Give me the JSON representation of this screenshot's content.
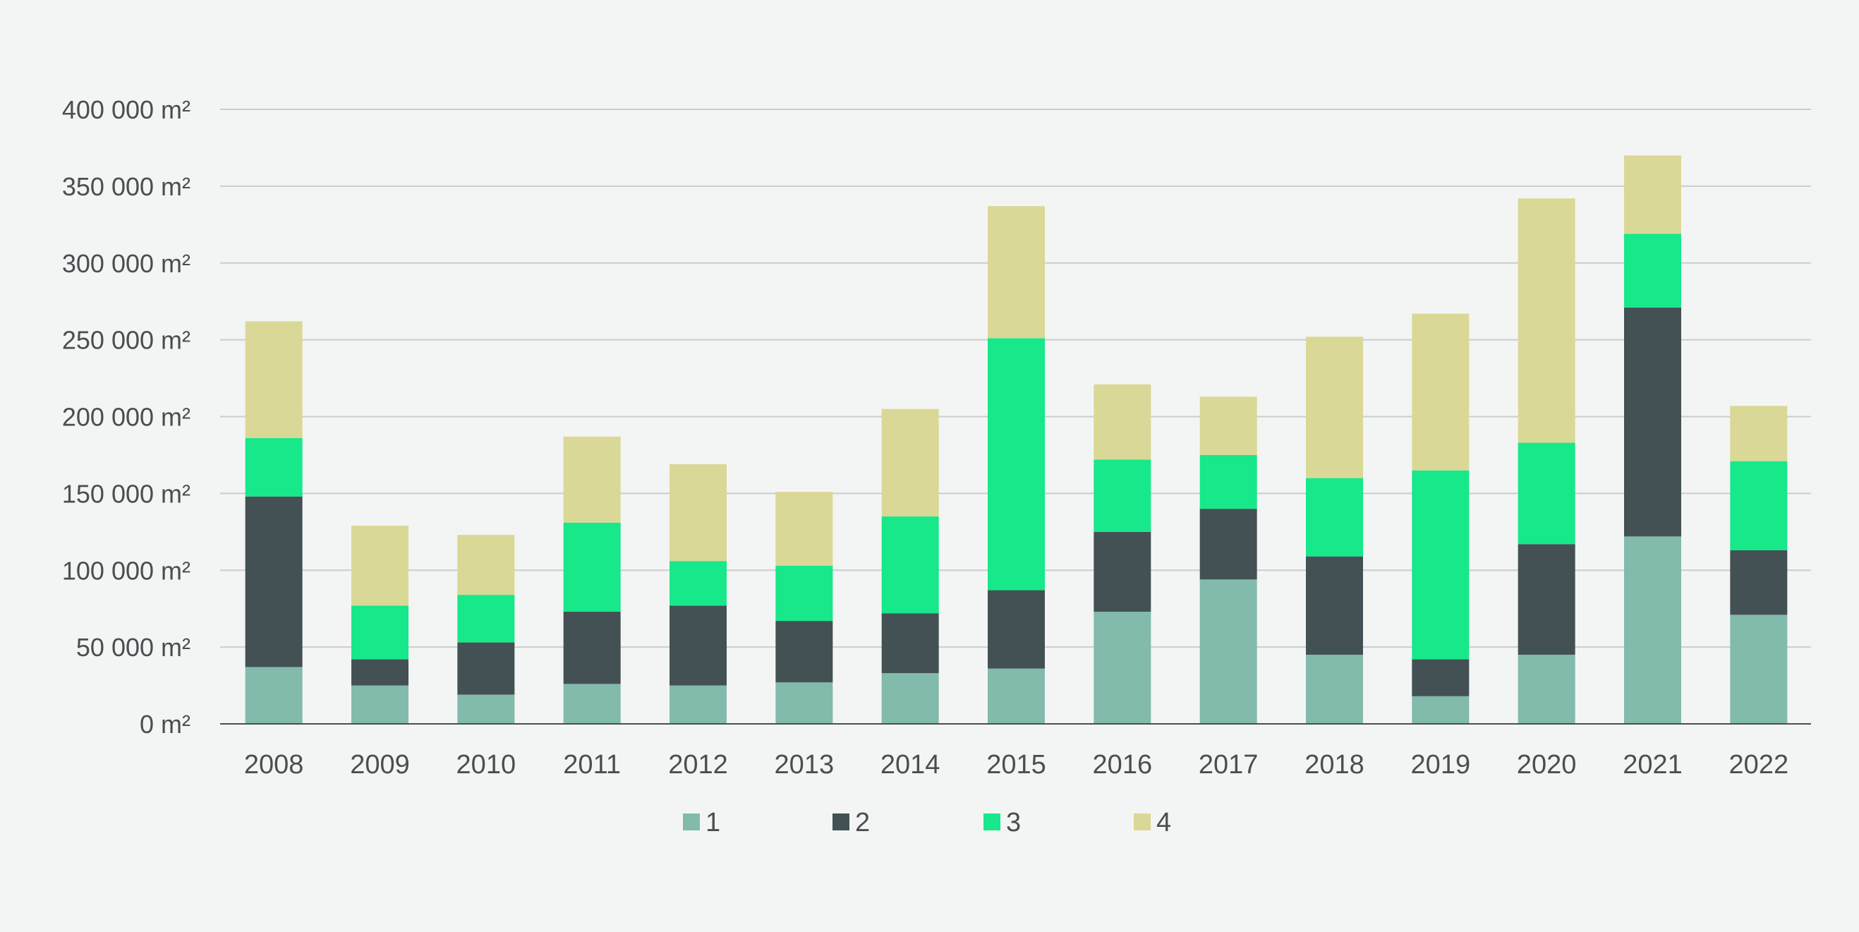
{
  "chart_data": {
    "type": "bar",
    "stacked": true,
    "title": "",
    "xlabel": "",
    "ylabel": "",
    "categories": [
      "2008",
      "2009",
      "2010",
      "2011",
      "2012",
      "2013",
      "2014",
      "2015",
      "2016",
      "2017",
      "2018",
      "2019",
      "2020",
      "2021",
      "2022"
    ],
    "series": [
      {
        "name": "1",
        "color": "#82baab",
        "values": [
          37000,
          25000,
          19000,
          26000,
          25000,
          27000,
          33000,
          36000,
          73000,
          94000,
          45000,
          18000,
          45000,
          122000,
          71000
        ]
      },
      {
        "name": "2",
        "color": "#435154",
        "values": [
          111000,
          17000,
          34000,
          47000,
          52000,
          40000,
          39000,
          51000,
          52000,
          46000,
          64000,
          24000,
          72000,
          149000,
          42000
        ]
      },
      {
        "name": "3",
        "color": "#17e88a",
        "values": [
          38000,
          35000,
          31000,
          58000,
          29000,
          36000,
          63000,
          164000,
          47000,
          35000,
          51000,
          123000,
          66000,
          48000,
          58000
        ]
      },
      {
        "name": "4",
        "color": "#dad896",
        "values": [
          76000,
          52000,
          39000,
          56000,
          63000,
          48000,
          70000,
          86000,
          49000,
          38000,
          92000,
          102000,
          159000,
          51000,
          36000
        ]
      }
    ],
    "yticks": [
      0,
      50000,
      100000,
      150000,
      200000,
      250000,
      300000,
      350000,
      400000
    ],
    "ytick_labels": [
      "0 m²",
      "50 000 m²",
      "100 000 m²",
      "150 000 m²",
      "200 000 m²",
      "250 000 m²",
      "300 000 m²",
      "350 000 m²",
      "400 000 m²"
    ],
    "ylim": [
      0,
      400000
    ],
    "grid": true,
    "legend_position": "bottom-center"
  }
}
